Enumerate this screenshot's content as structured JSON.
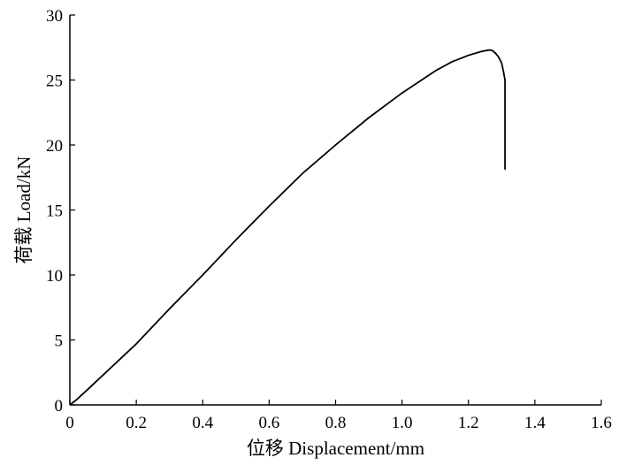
{
  "chart_data": {
    "type": "line",
    "title": "",
    "xlabel": "位移 Displacement/mm",
    "ylabel": "荷载 Load/kN",
    "xlim": [
      0,
      1.6
    ],
    "ylim": [
      0,
      30
    ],
    "xticks": [
      "0",
      "0.2",
      "0.4",
      "0.6",
      "0.8",
      "1.0",
      "1.2",
      "1.4",
      "1.6"
    ],
    "yticks": [
      "0",
      "5",
      "10",
      "15",
      "20",
      "25",
      "30"
    ],
    "grid": false,
    "legend": "none",
    "series": [
      {
        "x": [
          0,
          0.02,
          0.05,
          0.1,
          0.2,
          0.3,
          0.4,
          0.5,
          0.6,
          0.7,
          0.8,
          0.9,
          1.0,
          1.1,
          1.15,
          1.2,
          1.24,
          1.26,
          1.27,
          1.28,
          1.29,
          1.3,
          1.305,
          1.31,
          1.31,
          1.31,
          1.31
        ],
        "y": [
          0,
          0.4,
          1.1,
          2.3,
          4.7,
          7.4,
          10.0,
          12.7,
          15.3,
          17.8,
          20.0,
          22.1,
          24.0,
          25.7,
          26.4,
          26.9,
          27.2,
          27.3,
          27.3,
          27.1,
          26.8,
          26.3,
          25.7,
          25.0,
          22.0,
          20.0,
          18.1
        ],
        "color": "#000000"
      }
    ]
  }
}
